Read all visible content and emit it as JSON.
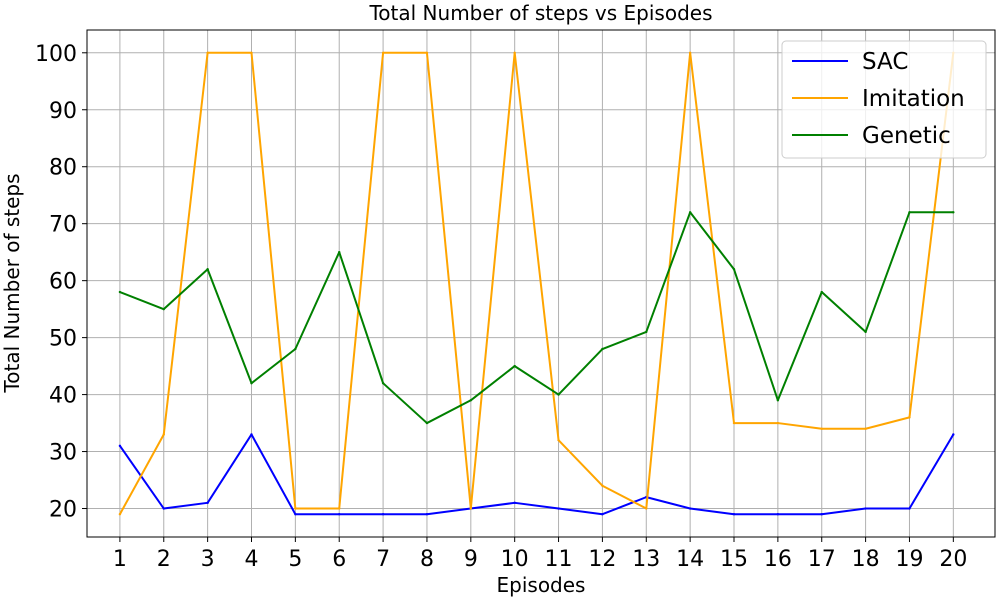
{
  "chart_data": {
    "type": "line",
    "title": "Total Number of steps vs Episodes",
    "xlabel": "Episodes",
    "ylabel": "Total Number of steps",
    "x": [
      1,
      2,
      3,
      4,
      5,
      6,
      7,
      8,
      9,
      10,
      11,
      12,
      13,
      14,
      15,
      16,
      17,
      18,
      19,
      20
    ],
    "xlim": [
      0.25,
      20.95
    ],
    "ylim": [
      15,
      104
    ],
    "yticks": [
      20,
      30,
      40,
      50,
      60,
      70,
      80,
      90,
      100
    ],
    "grid": true,
    "legend_position": "top-right",
    "series": [
      {
        "name": "SAC",
        "color": "#0000ff",
        "values": [
          31,
          20,
          21,
          33,
          19,
          19,
          19,
          19,
          20,
          21,
          20,
          19,
          22,
          20,
          19,
          19,
          19,
          20,
          20,
          33
        ]
      },
      {
        "name": "Imitation",
        "color": "#ffa500",
        "values": [
          19,
          33,
          100,
          100,
          20,
          20,
          100,
          100,
          20,
          100,
          32,
          24,
          20,
          100,
          35,
          35,
          34,
          34,
          36,
          100
        ]
      },
      {
        "name": "Genetic",
        "color": "#008000",
        "values": [
          58,
          55,
          62,
          42,
          48,
          65,
          42,
          35,
          39,
          45,
          40,
          48,
          51,
          72,
          62,
          39,
          58,
          51,
          72,
          72
        ]
      }
    ]
  }
}
